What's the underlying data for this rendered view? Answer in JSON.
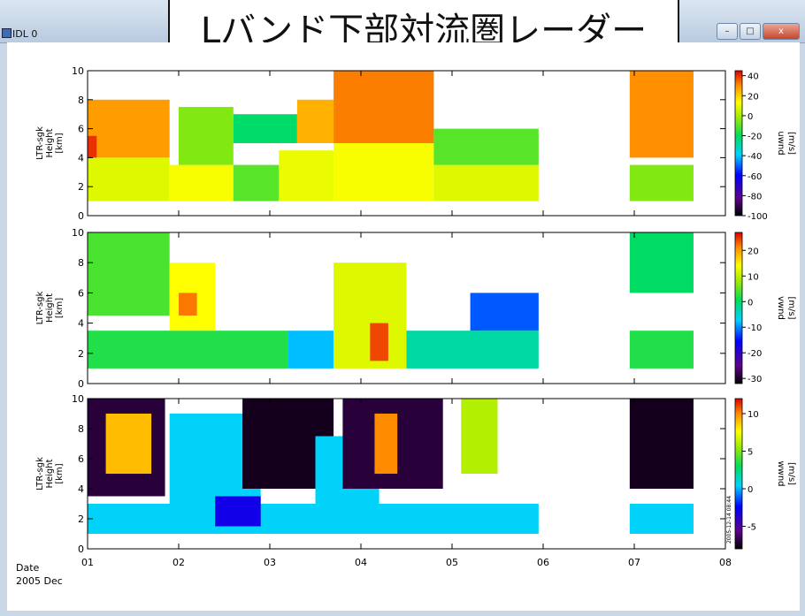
{
  "window": {
    "title": "IDL 0",
    "minimize": "–",
    "maximize": "□",
    "close": "x"
  },
  "banner": {
    "title": "Lバンド下部対流圏レーダー"
  },
  "date_label": {
    "line1": "Date",
    "line2": "2005 Dec"
  },
  "vertical_note": "2005-12-14 08:44",
  "chart_data": [
    {
      "type": "heatmap",
      "ylabel": [
        "LTR-sgk",
        "Height",
        "[km]"
      ],
      "ylim": [
        0,
        10
      ],
      "yticks": [
        0,
        2,
        4,
        6,
        8,
        10
      ],
      "xlim": [
        1,
        8
      ],
      "xticks": [
        "01",
        "02",
        "03",
        "04",
        "05",
        "06",
        "07",
        "08"
      ],
      "colorbar": {
        "label": "uwnd",
        "unit": "[m/s]",
        "range": [
          -100,
          45
        ],
        "ticks": [
          40,
          20,
          0,
          -20,
          -40,
          -60,
          -80,
          -100
        ]
      },
      "data_gaps": [
        [
          5.95,
          6.95
        ],
        [
          7.65,
          8.0
        ]
      ],
      "regions": [
        {
          "x": [
            1.0,
            1.9
          ],
          "y": [
            1.0,
            4.0
          ],
          "v": 8
        },
        {
          "x": [
            1.0,
            1.9
          ],
          "y": [
            4.0,
            8.0
          ],
          "v": 28
        },
        {
          "x": [
            1.0,
            1.1
          ],
          "y": [
            4.0,
            5.5
          ],
          "v": 40
        },
        {
          "x": [
            1.9,
            2.6
          ],
          "y": [
            1.0,
            3.5
          ],
          "v": 12
        },
        {
          "x": [
            2.0,
            2.6
          ],
          "y": [
            3.5,
            7.5
          ],
          "v": -5
        },
        {
          "x": [
            2.6,
            3.1
          ],
          "y": [
            1.0,
            3.5
          ],
          "v": -10
        },
        {
          "x": [
            2.6,
            3.3
          ],
          "y": [
            5.0,
            7.0
          ],
          "v": -22
        },
        {
          "x": [
            3.1,
            3.7
          ],
          "y": [
            1.0,
            4.5
          ],
          "v": 10
        },
        {
          "x": [
            3.3,
            3.7
          ],
          "y": [
            5.0,
            8.0
          ],
          "v": 25
        },
        {
          "x": [
            3.7,
            4.8
          ],
          "y": [
            1.0,
            5.0
          ],
          "v": 12
        },
        {
          "x": [
            3.7,
            4.8
          ],
          "y": [
            5.0,
            10.0
          ],
          "v": 32
        },
        {
          "x": [
            4.8,
            5.95
          ],
          "y": [
            1.0,
            3.5
          ],
          "v": 8
        },
        {
          "x": [
            4.8,
            5.95
          ],
          "y": [
            3.5,
            6.0
          ],
          "v": -10
        },
        {
          "x": [
            6.95,
            7.65
          ],
          "y": [
            1.0,
            3.5
          ],
          "v": -5
        },
        {
          "x": [
            6.95,
            7.65
          ],
          "y": [
            4.0,
            10.0
          ],
          "v": 30
        }
      ]
    },
    {
      "type": "heatmap",
      "ylabel": [
        "LTR-sgk",
        "Height",
        "[km]"
      ],
      "ylim": [
        0,
        10
      ],
      "yticks": [
        0,
        2,
        4,
        6,
        8,
        10
      ],
      "xlim": [
        1,
        8
      ],
      "xticks": [
        "01",
        "02",
        "03",
        "04",
        "05",
        "06",
        "07",
        "08"
      ],
      "colorbar": {
        "label": "vwnd",
        "unit": "[m/s]",
        "range": [
          -32,
          27
        ],
        "ticks": [
          20,
          10,
          0,
          -10,
          -20,
          -30
        ]
      },
      "data_gaps": [
        [
          5.95,
          6.95
        ],
        [
          7.65,
          8.0
        ]
      ],
      "regions": [
        {
          "x": [
            1.0,
            3.2
          ],
          "y": [
            1.0,
            3.5
          ],
          "v": 2
        },
        {
          "x": [
            1.0,
            1.9
          ],
          "y": [
            4.5,
            10.0
          ],
          "v": 4
        },
        {
          "x": [
            1.9,
            2.4
          ],
          "y": [
            3.5,
            8.0
          ],
          "v": 14
        },
        {
          "x": [
            2.0,
            2.2
          ],
          "y": [
            4.5,
            6.0
          ],
          "v": 22
        },
        {
          "x": [
            3.2,
            3.7
          ],
          "y": [
            1.0,
            3.5
          ],
          "v": -8
        },
        {
          "x": [
            3.7,
            4.5
          ],
          "y": [
            1.0,
            8.0
          ],
          "v": 12
        },
        {
          "x": [
            4.1,
            4.3
          ],
          "y": [
            1.5,
            4.0
          ],
          "v": 24
        },
        {
          "x": [
            4.5,
            5.95
          ],
          "y": [
            1.0,
            3.5
          ],
          "v": -3
        },
        {
          "x": [
            5.2,
            5.95
          ],
          "y": [
            3.5,
            6.0
          ],
          "v": -12
        },
        {
          "x": [
            6.95,
            7.65
          ],
          "y": [
            1.0,
            3.5
          ],
          "v": 2
        },
        {
          "x": [
            6.95,
            7.65
          ],
          "y": [
            6.0,
            10.0
          ],
          "v": 0
        }
      ]
    },
    {
      "type": "heatmap",
      "ylabel": [
        "LTR-sgk",
        "Height",
        "[km]"
      ],
      "ylim": [
        0,
        10
      ],
      "yticks": [
        0,
        2,
        4,
        6,
        8,
        10
      ],
      "xlim": [
        1,
        8
      ],
      "xticks": [
        "01",
        "02",
        "03",
        "04",
        "05",
        "06",
        "07",
        "08"
      ],
      "colorbar": {
        "label": "wwnd",
        "unit": "[m/s]",
        "range": [
          -8,
          12
        ],
        "ticks": [
          10,
          5,
          0,
          -5
        ]
      },
      "data_gaps": [
        [
          5.95,
          6.95
        ],
        [
          7.65,
          8.0
        ]
      ],
      "regions": [
        {
          "x": [
            1.0,
            5.95
          ],
          "y": [
            1.0,
            3.0
          ],
          "v": 0.5
        },
        {
          "x": [
            1.0,
            1.85
          ],
          "y": [
            3.5,
            10.0
          ],
          "v": -7
        },
        {
          "x": [
            1.2,
            1.7
          ],
          "y": [
            5.0,
            9.0
          ],
          "v": 9
        },
        {
          "x": [
            1.9,
            2.9
          ],
          "y": [
            3.0,
            9.0
          ],
          "v": 0.5
        },
        {
          "x": [
            2.4,
            2.9
          ],
          "y": [
            1.5,
            3.5
          ],
          "v": -3
        },
        {
          "x": [
            2.7,
            3.7
          ],
          "y": [
            4.0,
            10.0
          ],
          "v": -7.5
        },
        {
          "x": [
            3.5,
            4.2
          ],
          "y": [
            3.0,
            7.5
          ],
          "v": 0.5
        },
        {
          "x": [
            3.8,
            4.9
          ],
          "y": [
            4.0,
            10.0
          ],
          "v": -7
        },
        {
          "x": [
            4.15,
            4.4
          ],
          "y": [
            5.0,
            9.0
          ],
          "v": 10
        },
        {
          "x": [
            5.1,
            5.5
          ],
          "y": [
            5.0,
            10.0
          ],
          "v": 6
        },
        {
          "x": [
            6.95,
            7.65
          ],
          "y": [
            1.0,
            3.0
          ],
          "v": 0.5
        },
        {
          "x": [
            6.95,
            7.65
          ],
          "y": [
            4.0,
            10.0
          ],
          "v": -7.5
        }
      ]
    }
  ]
}
